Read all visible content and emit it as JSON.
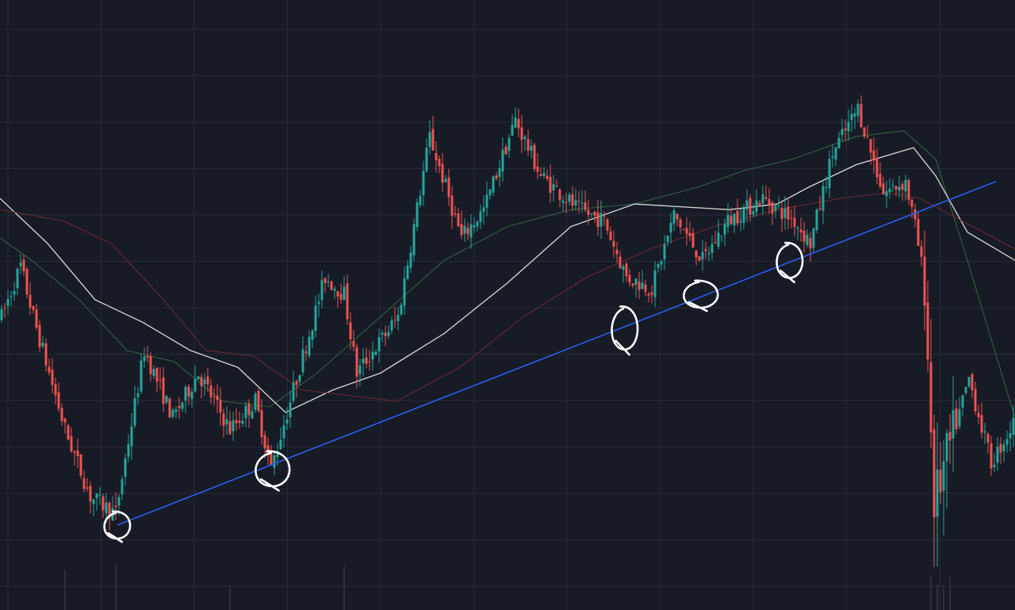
{
  "chart_data": {
    "type": "candlestick",
    "title": "",
    "xlabel": "",
    "ylabel": "",
    "x_range": [
      0,
      320
    ],
    "ylim": [
      0,
      100
    ],
    "grid": true,
    "legend": "none",
    "colors": {
      "background": "#171b26",
      "grid": "#262b38",
      "up": "#26a69a",
      "down": "#ef5350",
      "trendline": "#2962ff",
      "ma_fast": "#2e5e3a",
      "ma_mid": "#d9d9d9",
      "ma_slow": "#6b2a2e",
      "annotation": "#ffffff"
    },
    "price_path": [
      [
        0,
        48
      ],
      [
        6,
        57
      ],
      [
        10,
        48
      ],
      [
        20,
        28
      ],
      [
        28,
        16
      ],
      [
        36,
        13
      ],
      [
        45,
        42
      ],
      [
        54,
        30
      ],
      [
        62,
        38
      ],
      [
        72,
        28
      ],
      [
        80,
        33
      ],
      [
        85,
        21
      ],
      [
        92,
        35
      ],
      [
        102,
        55
      ],
      [
        108,
        52
      ],
      [
        112,
        38
      ],
      [
        125,
        48
      ],
      [
        135,
        80
      ],
      [
        145,
        62
      ],
      [
        152,
        67
      ],
      [
        162,
        83
      ],
      [
        170,
        73
      ],
      [
        182,
        67
      ],
      [
        190,
        65
      ],
      [
        197,
        55
      ],
      [
        205,
        53
      ],
      [
        212,
        66
      ],
      [
        221,
        58
      ],
      [
        229,
        65
      ],
      [
        240,
        69
      ],
      [
        250,
        65
      ],
      [
        255,
        61
      ],
      [
        262,
        77
      ],
      [
        270,
        85
      ],
      [
        278,
        70
      ],
      [
        285,
        72
      ],
      [
        288,
        64
      ],
      [
        291,
        54
      ],
      [
        294,
        15
      ],
      [
        305,
        37
      ],
      [
        312,
        22
      ],
      [
        320,
        30
      ]
    ],
    "volume_spikes": [
      20,
      36,
      72,
      108,
      293,
      295,
      297,
      299
    ],
    "moving_averages": [
      {
        "points": [
          [
            0,
            62
          ],
          [
            10,
            58
          ],
          [
            25,
            51
          ],
          [
            40,
            42
          ],
          [
            55,
            40
          ],
          [
            70,
            33
          ],
          [
            85,
            32
          ],
          [
            100,
            38
          ],
          [
            120,
            48
          ],
          [
            140,
            58
          ],
          [
            160,
            64
          ],
          [
            180,
            67
          ],
          [
            200,
            68
          ],
          [
            220,
            71
          ],
          [
            235,
            74
          ],
          [
            250,
            76
          ],
          [
            270,
            80
          ],
          [
            285,
            81
          ],
          [
            295,
            76
          ],
          [
            305,
            58
          ],
          [
            320,
            30
          ]
        ]
      },
      {
        "points": [
          [
            0,
            69
          ],
          [
            15,
            61
          ],
          [
            30,
            51
          ],
          [
            45,
            47
          ],
          [
            60,
            42
          ],
          [
            75,
            39
          ],
          [
            90,
            31
          ],
          [
            105,
            35
          ],
          [
            120,
            38
          ],
          [
            140,
            45
          ],
          [
            160,
            54
          ],
          [
            180,
            64
          ],
          [
            200,
            68
          ],
          [
            230,
            67
          ],
          [
            245,
            68
          ],
          [
            255,
            71
          ],
          [
            270,
            75
          ],
          [
            288,
            78
          ],
          [
            295,
            73
          ],
          [
            305,
            63
          ],
          [
            320,
            58
          ]
        ]
      },
      {
        "points": [
          [
            0,
            67
          ],
          [
            20,
            65
          ],
          [
            35,
            61
          ],
          [
            50,
            52
          ],
          [
            65,
            42
          ],
          [
            80,
            41
          ],
          [
            95,
            35
          ],
          [
            110,
            34
          ],
          [
            125,
            33
          ],
          [
            145,
            39
          ],
          [
            165,
            48
          ],
          [
            185,
            55
          ],
          [
            205,
            60
          ],
          [
            225,
            64
          ],
          [
            245,
            67
          ],
          [
            265,
            69
          ],
          [
            280,
            70
          ],
          [
            290,
            69
          ],
          [
            300,
            66
          ],
          [
            320,
            60
          ]
        ]
      }
    ],
    "trendline": {
      "from": [
        37,
        11
      ],
      "to": [
        314,
        72
      ]
    },
    "touch_markers": [
      {
        "x": 37,
        "y": 11
      },
      {
        "x": 86,
        "y": 21
      },
      {
        "x": 197,
        "y": 46
      },
      {
        "x": 221,
        "y": 52
      },
      {
        "x": 249,
        "y": 58
      }
    ]
  }
}
